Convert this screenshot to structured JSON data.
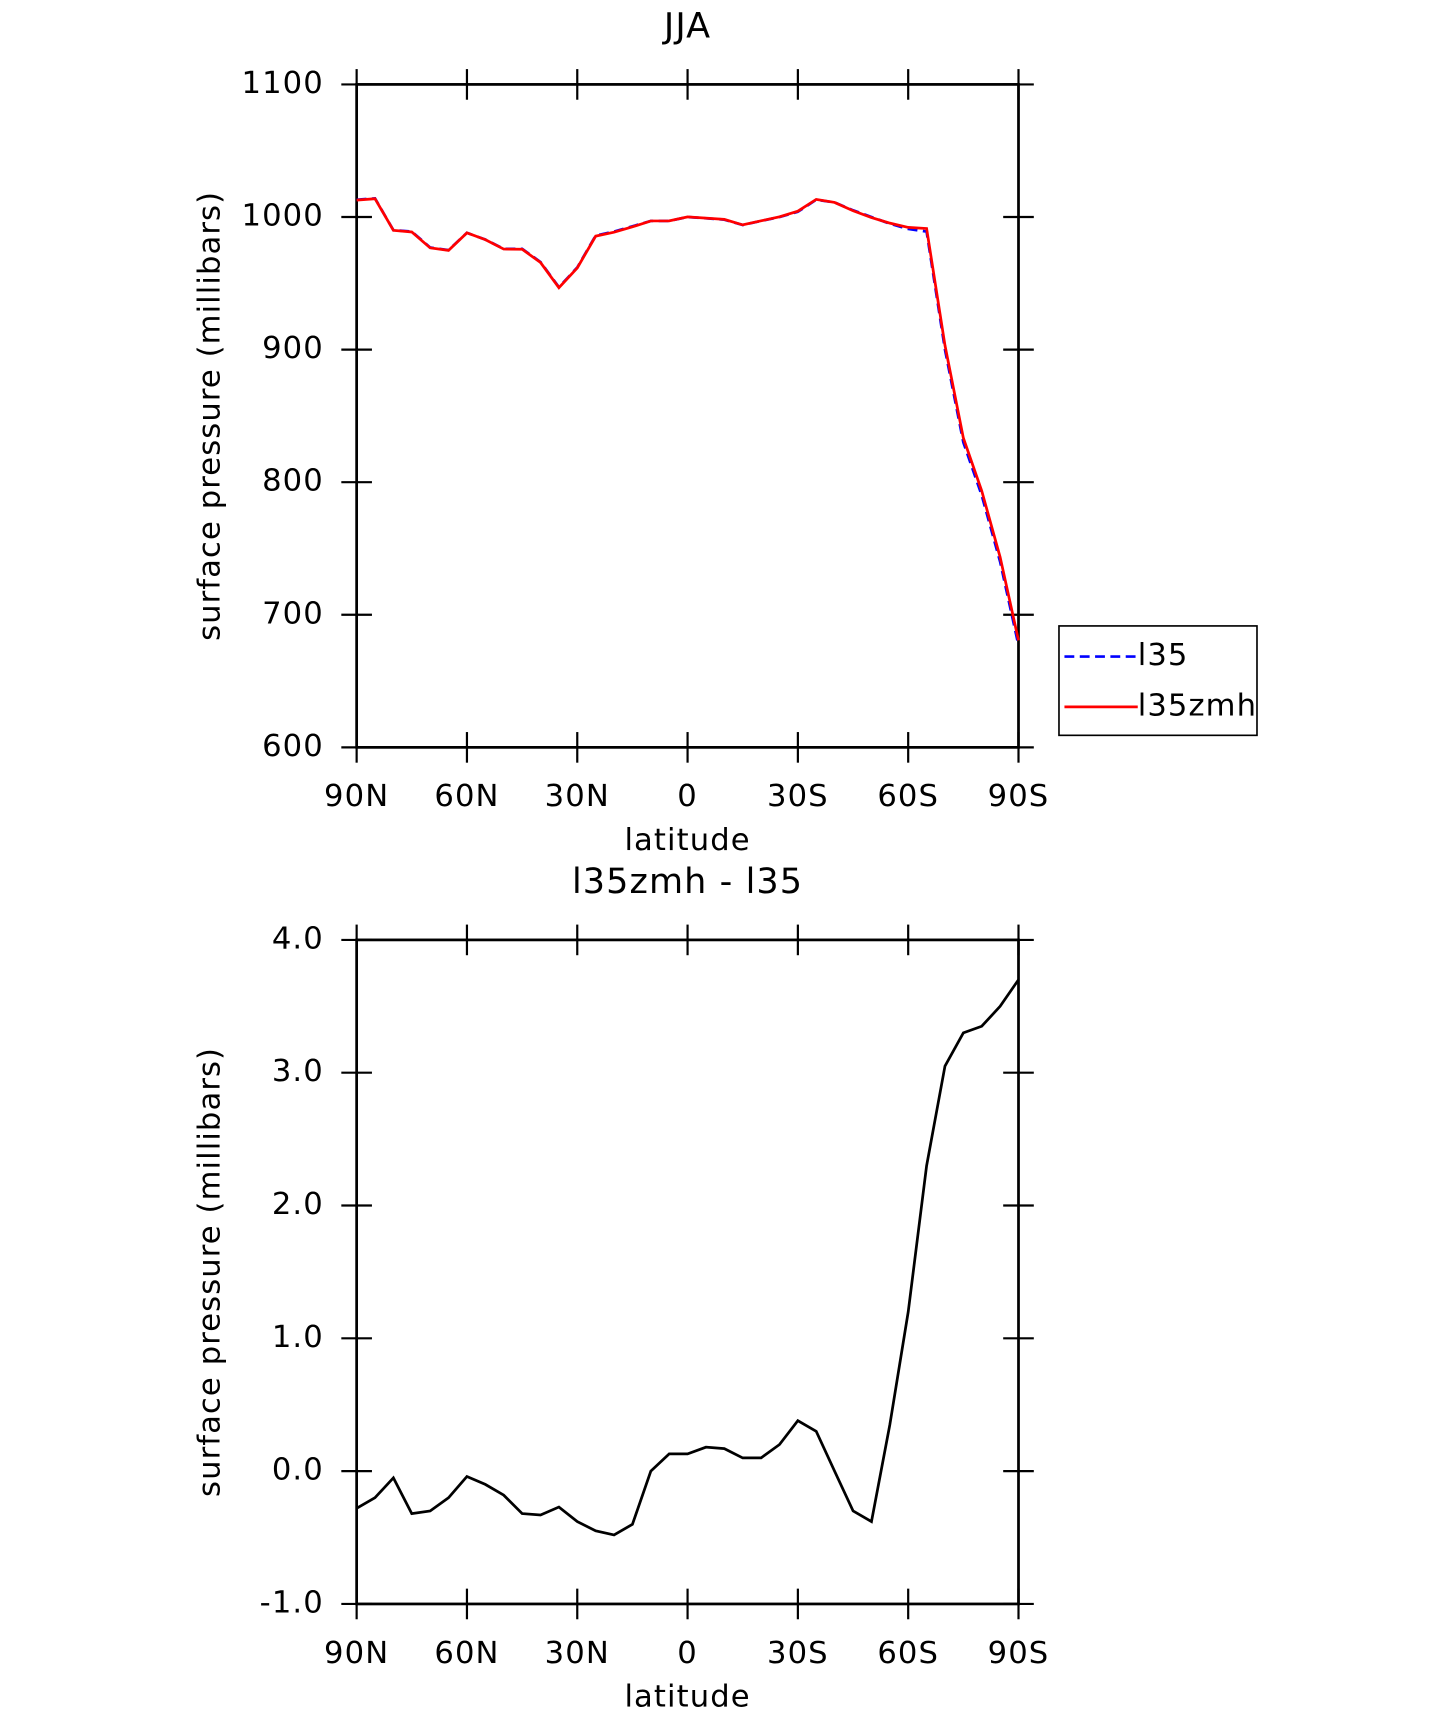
{
  "chart_data": [
    {
      "type": "line",
      "title": "JJA",
      "xlabel": "latitude",
      "ylabel": "surface pressure (millibars)",
      "x": [
        90,
        85,
        80,
        75,
        70,
        65,
        60,
        55,
        50,
        45,
        40,
        35,
        30,
        25,
        20,
        15,
        10,
        5,
        0,
        -5,
        -10,
        -15,
        -20,
        -25,
        -30,
        -35,
        -40,
        -45,
        -50,
        -55,
        -60,
        -65,
        -70,
        -75,
        -80,
        -85,
        -90
      ],
      "xlim": [
        90,
        -90
      ],
      "xticks": [
        {
          "value": 90,
          "label": "90N"
        },
        {
          "value": 60,
          "label": "60N"
        },
        {
          "value": 30,
          "label": "30N"
        },
        0,
        {
          "value": -30,
          "label": "30S"
        },
        {
          "value": -60,
          "label": "60S"
        },
        {
          "value": -90,
          "label": "90S"
        }
      ],
      "ylim": [
        600,
        1100
      ],
      "yticks": [
        600,
        700,
        800,
        900,
        1000,
        1100
      ],
      "legend": "right",
      "series": [
        {
          "name": "l35",
          "color": "#0000ff",
          "dash": true,
          "values": [
            1013,
            1014,
            990,
            989,
            977,
            975,
            988,
            983,
            976,
            976,
            966,
            947,
            962,
            986,
            989,
            993,
            997,
            997,
            1000,
            999,
            998,
            994,
            997,
            1000,
            1004,
            1013,
            1011,
            1005,
            1000,
            995,
            991,
            989,
            900,
            830,
            790,
            740,
            677
          ]
        },
        {
          "name": "l35zmh",
          "color": "#ff0000",
          "dash": false,
          "values": [
            1012.7,
            1013.8,
            989.9,
            988.7,
            976.7,
            974.8,
            988,
            982.9,
            975.8,
            975.7,
            965.7,
            946.7,
            961.6,
            985.6,
            988.5,
            992.6,
            997,
            997.1,
            1000.1,
            999.2,
            998.2,
            994.1,
            997.1,
            1000.2,
            1004.4,
            1013.3,
            1011,
            1004.7,
            999.6,
            995.4,
            992.2,
            991.3,
            903.1,
            833.3,
            793.4,
            743.5,
            680.7
          ]
        }
      ]
    },
    {
      "type": "line",
      "title": "l35zmh - l35",
      "xlabel": "latitude",
      "ylabel": "surface pressure (millibars)",
      "x": [
        90,
        85,
        80,
        75,
        70,
        65,
        60,
        55,
        50,
        45,
        40,
        35,
        30,
        25,
        20,
        15,
        10,
        5,
        0,
        -5,
        -10,
        -15,
        -20,
        -25,
        -30,
        -35,
        -40,
        -45,
        -50,
        -55,
        -60,
        -65,
        -70,
        -75,
        -80,
        -85,
        -90
      ],
      "xlim": [
        90,
        -90
      ],
      "xticks": [
        {
          "value": 90,
          "label": "90N"
        },
        {
          "value": 60,
          "label": "60N"
        },
        {
          "value": 30,
          "label": "30N"
        },
        0,
        {
          "value": -30,
          "label": "30S"
        },
        {
          "value": -60,
          "label": "60S"
        },
        {
          "value": -90,
          "label": "90S"
        }
      ],
      "ylim": [
        -1,
        4
      ],
      "yticks": [
        {
          "value": -1,
          "label": "-1.0"
        },
        {
          "value": 0,
          "label": "0.0"
        },
        {
          "value": 1,
          "label": "1.0"
        },
        {
          "value": 2,
          "label": "2.0"
        },
        {
          "value": 3,
          "label": "3.0"
        },
        {
          "value": 4,
          "label": "4.0"
        }
      ],
      "series": [
        {
          "color": "#000000",
          "values": [
            -0.28,
            -0.2,
            -0.05,
            -0.32,
            -0.3,
            -0.2,
            -0.04,
            -0.1,
            -0.18,
            -0.32,
            -0.33,
            -0.27,
            -0.38,
            -0.45,
            -0.48,
            -0.4,
            0.0,
            0.13,
            0.13,
            0.18,
            0.17,
            0.1,
            0.1,
            0.2,
            0.38,
            0.3,
            0.0,
            -0.3,
            -0.38,
            0.35,
            1.2,
            2.3,
            3.05,
            3.3,
            3.35,
            3.5,
            3.7
          ]
        }
      ]
    }
  ]
}
